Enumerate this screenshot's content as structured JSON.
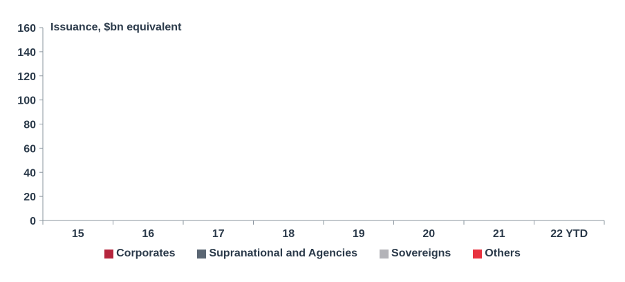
{
  "chart_data": {
    "type": "bar",
    "title": "Issuance, $bn equivalent",
    "xlabel": "",
    "ylabel": "",
    "categories": [
      "15",
      "16",
      "17",
      "18",
      "19",
      "20",
      "21",
      "22 YTD"
    ],
    "yticks": [
      0,
      20,
      40,
      60,
      80,
      100,
      120,
      140,
      160
    ],
    "ylim": [
      0,
      160
    ],
    "grid": false,
    "legend_position": "bottom",
    "series": [
      {
        "name": "Corporates",
        "color": "#b5253d",
        "values": [
          0,
          0,
          0,
          0,
          0,
          0,
          0,
          0
        ]
      },
      {
        "name": "Supranational and Agencies",
        "color": "#5a6673",
        "values": [
          0,
          0,
          0,
          0,
          0,
          0,
          0,
          0
        ]
      },
      {
        "name": "Sovereigns",
        "color": "#b3b3b8",
        "values": [
          0,
          0,
          0,
          0,
          0,
          0,
          0,
          0
        ]
      },
      {
        "name": "Others",
        "color": "#e8323f",
        "values": [
          0,
          0,
          0,
          0,
          0,
          0,
          0,
          0
        ]
      }
    ]
  }
}
